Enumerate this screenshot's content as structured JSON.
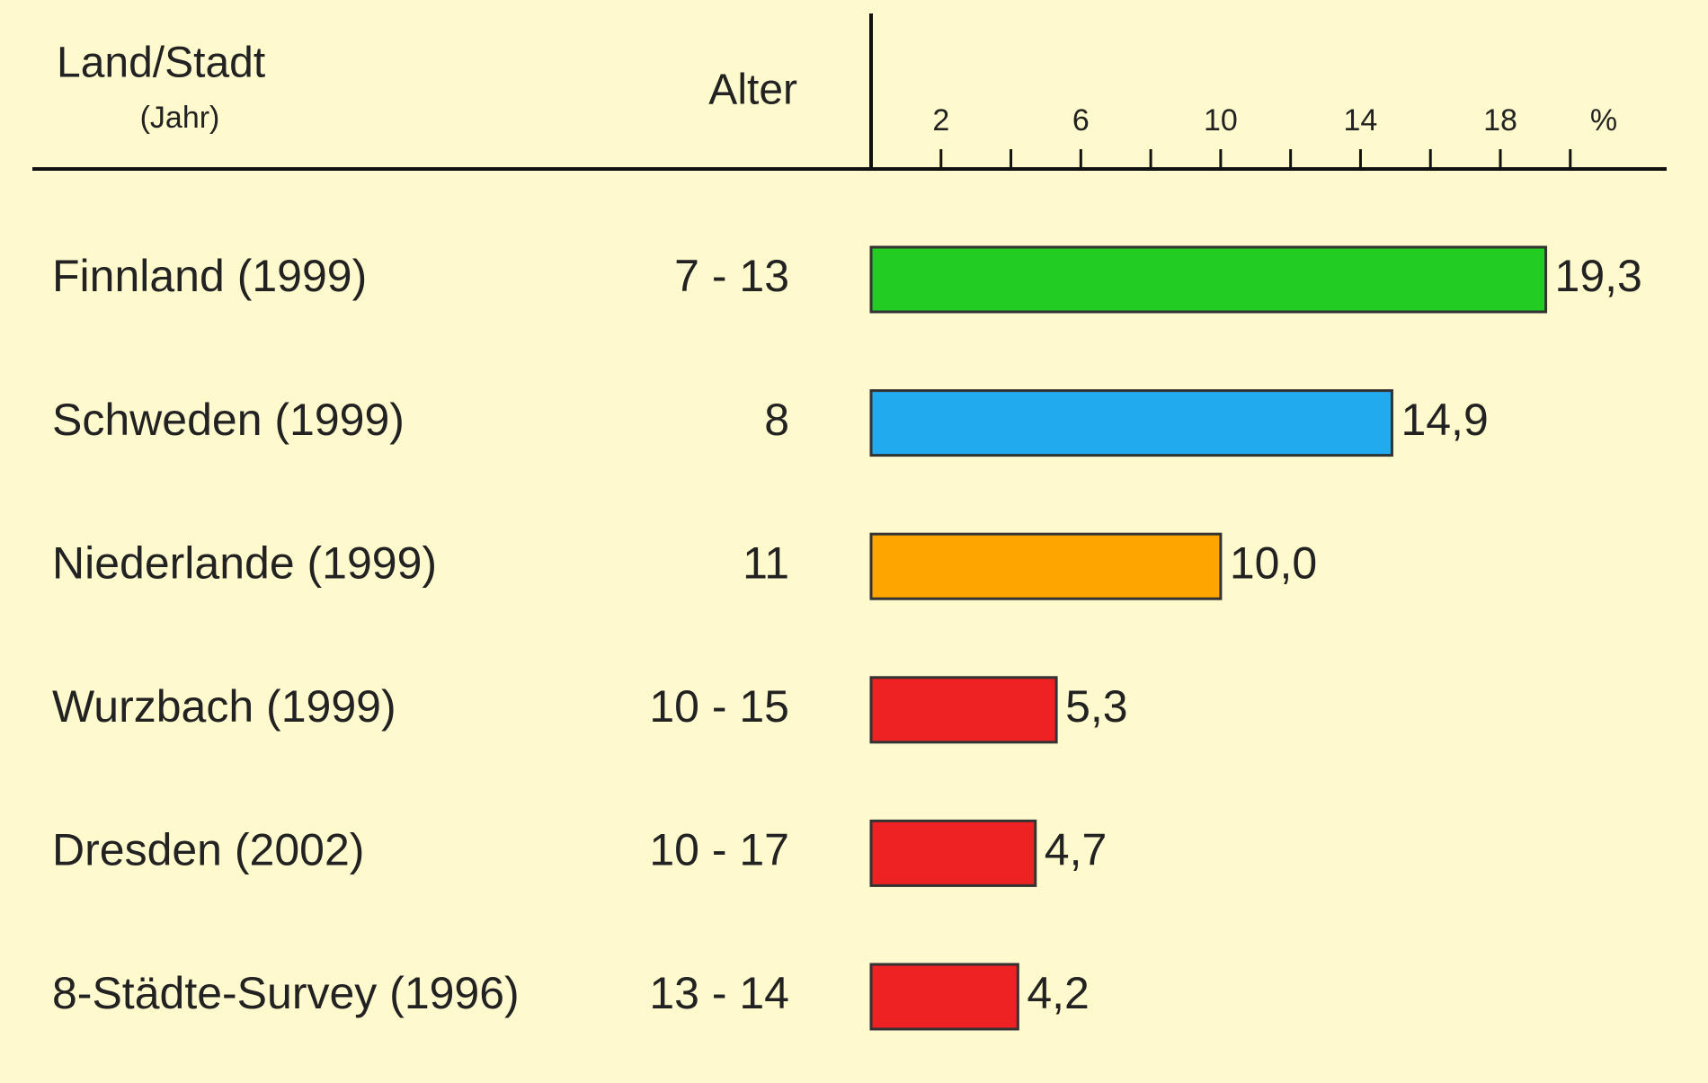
{
  "chart_data": {
    "type": "bar",
    "orientation": "horizontal",
    "header_name": "Land/Stadt",
    "header_year": "(Jahr)",
    "header_age": "Alter",
    "xlabel": "%",
    "categories": [
      "Finnland (1999)",
      "Schweden (1999)",
      "Niederlande (1999)",
      "Wurzbach (1999)",
      "Dresden (2002)",
      "8-Städte-Survey (1996)"
    ],
    "ages": [
      "7 - 13",
      "8",
      "11",
      "10 - 15",
      "10 - 17",
      "13 - 14"
    ],
    "values": [
      19.3,
      14.9,
      10.0,
      5.3,
      4.7,
      4.2
    ],
    "value_labels": [
      "19,3",
      "14,9",
      "10,0",
      "5,3",
      "4,7",
      "4,2"
    ],
    "colors": [
      "#22cc22",
      "#22aaee",
      "#ffa500",
      "#ee2222",
      "#ee2222",
      "#ee2222"
    ],
    "xlim": [
      0,
      22.5
    ],
    "xticks": [
      2,
      6,
      10,
      14,
      18
    ],
    "xminor_ticks": [
      4,
      8,
      12,
      16,
      20
    ]
  }
}
